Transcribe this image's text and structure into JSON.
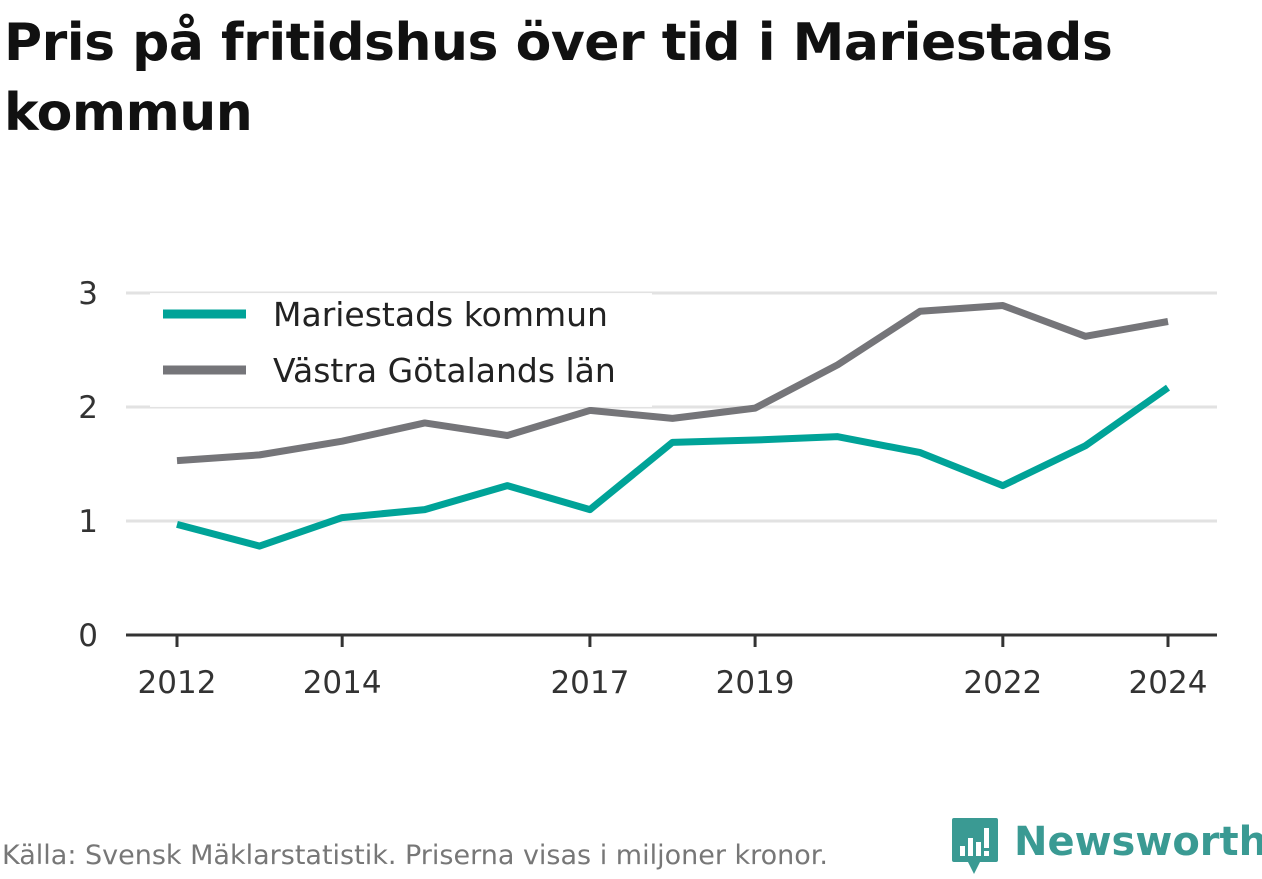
{
  "title": "Pris på fritidshus över tid i Mariestads kommun",
  "source_note": "Källa: Svensk Mäklarstatistik. Priserna visas i miljoner kronor.",
  "brand": {
    "name": "Newsworthy",
    "icon": "newsworthy-logo-icon",
    "color": "#3a9a93"
  },
  "chart_data": {
    "type": "line",
    "title": "Pris på fritidshus över tid i Mariestads kommun",
    "xlabel": "",
    "ylabel": "",
    "x": [
      2012,
      2013,
      2014,
      2015,
      2016,
      2017,
      2018,
      2019,
      2020,
      2021,
      2022,
      2023,
      2024
    ],
    "x_tick_labels": [
      "2012",
      "2014",
      "2017",
      "2019",
      "2022",
      "2024"
    ],
    "y_tick_labels": [
      "0",
      "1",
      "2",
      "3"
    ],
    "xlim": [
      2011.4,
      2024.6
    ],
    "ylim": [
      0,
      3.1
    ],
    "grid": true,
    "legend_position": "top-left",
    "series": [
      {
        "name": "Mariestads kommun",
        "color": "#00a398",
        "values": [
          0.97,
          0.78,
          1.03,
          1.1,
          1.31,
          1.1,
          1.69,
          1.71,
          1.74,
          1.6,
          1.31,
          1.66,
          2.17
        ]
      },
      {
        "name": "Västra Götalands län",
        "color": "#757579",
        "values": [
          1.53,
          1.58,
          1.7,
          1.86,
          1.75,
          1.97,
          1.9,
          1.99,
          2.37,
          2.84,
          2.89,
          2.62,
          2.75
        ]
      }
    ]
  }
}
